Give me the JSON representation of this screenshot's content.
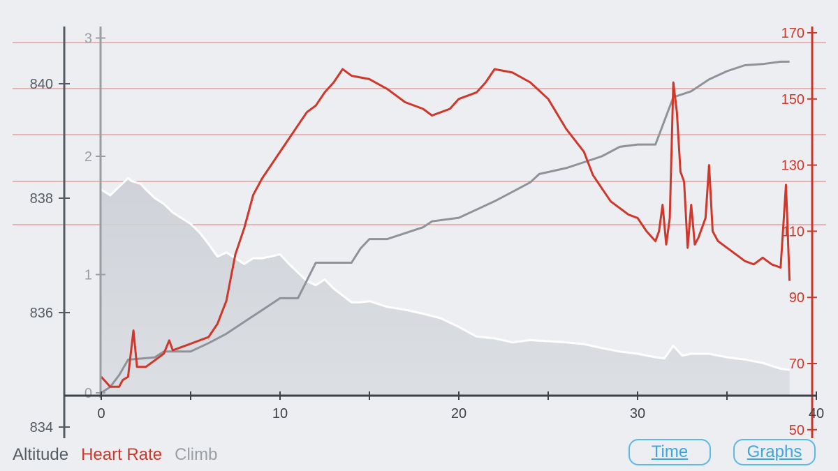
{
  "colors": {
    "altitude": "#555b63",
    "heart_rate": "#d0372a",
    "climb": "#9a9ea3",
    "altitude_fill": "#cfd2d8",
    "altitude_line": "#ffffff",
    "button": "#3aa6e2",
    "background": "#eceef1"
  },
  "legend": {
    "altitude": "Altitude",
    "heart_rate": "Heart Rate",
    "climb": "Climb"
  },
  "buttons": {
    "time": "Time",
    "graphs": "Graphs"
  },
  "chart_data": {
    "type": "line",
    "x_ticks": [
      "0",
      "10",
      "20",
      "30",
      "40"
    ],
    "xlim": [
      0,
      40
    ],
    "altitude_axis": {
      "ticks": [
        "834",
        "836",
        "838",
        "840"
      ],
      "ylim": [
        834,
        840.8
      ]
    },
    "climb_axis": {
      "ticks": [
        "0",
        "1",
        "2",
        "3"
      ],
      "ylim": [
        0,
        3
      ]
    },
    "heart_rate_axis": {
      "ticks": [
        "50",
        "70",
        "90",
        "110",
        "130",
        "150",
        "170"
      ],
      "ylim": [
        50,
        170
      ]
    },
    "grid": "horizontal red reference lines",
    "series": [
      {
        "name": "Altitude",
        "axis": "altitude",
        "style": "filled-area",
        "x": [
          0,
          0.5,
          1,
          1.5,
          1.7,
          2.2,
          2.5,
          3,
          3.5,
          4,
          5,
          5.5,
          6,
          6.5,
          7,
          7.5,
          8,
          8.5,
          9,
          9.5,
          10,
          10.5,
          11,
          11.5,
          12,
          12.5,
          13,
          13.5,
          14,
          14.5,
          15,
          16,
          17,
          18,
          19,
          20,
          21,
          22,
          23,
          24,
          25,
          26,
          27,
          28,
          29,
          30,
          31,
          31.5,
          32,
          32.5,
          33,
          34,
          35,
          36,
          37,
          38,
          38.5
        ],
        "values": [
          838.15,
          838.05,
          838.2,
          838.35,
          838.3,
          838.25,
          838.15,
          838.0,
          837.9,
          837.75,
          837.55,
          837.4,
          837.2,
          836.98,
          837.05,
          836.95,
          836.85,
          836.95,
          836.95,
          836.98,
          837.02,
          836.85,
          836.7,
          836.55,
          836.48,
          836.58,
          836.42,
          836.3,
          836.18,
          836.18,
          836.2,
          836.1,
          836.05,
          835.98,
          835.9,
          835.75,
          835.58,
          835.55,
          835.48,
          835.52,
          835.5,
          835.48,
          835.45,
          835.38,
          835.32,
          835.28,
          835.22,
          835.2,
          835.42,
          835.25,
          835.28,
          835.28,
          835.22,
          835.18,
          835.12,
          835.02,
          835.0
        ]
      },
      {
        "name": "Heart Rate",
        "axis": "heart_rate",
        "style": "line",
        "x": [
          0,
          0.5,
          1,
          1.2,
          1.5,
          1.8,
          2,
          2.5,
          3,
          3.5,
          3.8,
          4,
          4.5,
          5,
          5.5,
          6,
          6.5,
          7,
          7.5,
          8,
          8.5,
          9,
          9.5,
          10,
          11,
          11.5,
          12,
          12.5,
          13,
          13.5,
          14,
          15,
          16,
          17,
          18,
          18.5,
          19,
          19.5,
          20,
          21,
          21.5,
          22,
          23,
          24,
          25,
          26,
          27,
          27.5,
          28,
          28.5,
          29,
          29.5,
          30,
          30.5,
          31,
          31.2,
          31.4,
          31.6,
          31.8,
          32,
          32.2,
          32.4,
          32.6,
          32.8,
          33,
          33.2,
          33.4,
          33.6,
          33.8,
          34,
          34.2,
          34.5,
          35,
          35.5,
          36,
          36.5,
          37,
          37.5,
          38,
          38.3,
          38.5
        ],
        "values": [
          66,
          63,
          63,
          65,
          66,
          80,
          69,
          69,
          71,
          73,
          77,
          74,
          75,
          76,
          77,
          78,
          82,
          89,
          103,
          111,
          121,
          126,
          130,
          134,
          142,
          146,
          148,
          152,
          155,
          159,
          157,
          156,
          153,
          149,
          147,
          145,
          146,
          147,
          150,
          152,
          155,
          159,
          158,
          155,
          150,
          141,
          134,
          127,
          123,
          119,
          117,
          115,
          114,
          110,
          107,
          110,
          118,
          106,
          114,
          155,
          146,
          128,
          125,
          105,
          118,
          106,
          108,
          111,
          114,
          130,
          110,
          107,
          105,
          103,
          101,
          100,
          102,
          100,
          99,
          124,
          95
        ]
      },
      {
        "name": "Climb",
        "axis": "climb",
        "style": "line",
        "x": [
          0,
          0.5,
          1,
          1.5,
          3,
          3.5,
          5,
          6,
          7,
          8,
          9,
          10,
          11,
          11.5,
          12,
          13,
          14,
          14.5,
          15,
          16,
          18,
          18.5,
          20,
          21,
          22,
          23,
          24,
          24.5,
          26,
          27,
          28,
          29,
          30,
          31,
          31.5,
          32,
          33,
          34,
          35,
          36,
          37,
          38,
          38.5
        ],
        "values": [
          0,
          0.05,
          0.15,
          0.28,
          0.3,
          0.35,
          0.35,
          0.42,
          0.5,
          0.6,
          0.7,
          0.8,
          0.8,
          0.95,
          1.1,
          1.1,
          1.1,
          1.22,
          1.3,
          1.3,
          1.4,
          1.45,
          1.48,
          1.55,
          1.62,
          1.7,
          1.78,
          1.85,
          1.9,
          1.95,
          2.0,
          2.08,
          2.1,
          2.1,
          2.3,
          2.5,
          2.55,
          2.65,
          2.72,
          2.77,
          2.78,
          2.8,
          2.8
        ]
      }
    ]
  }
}
